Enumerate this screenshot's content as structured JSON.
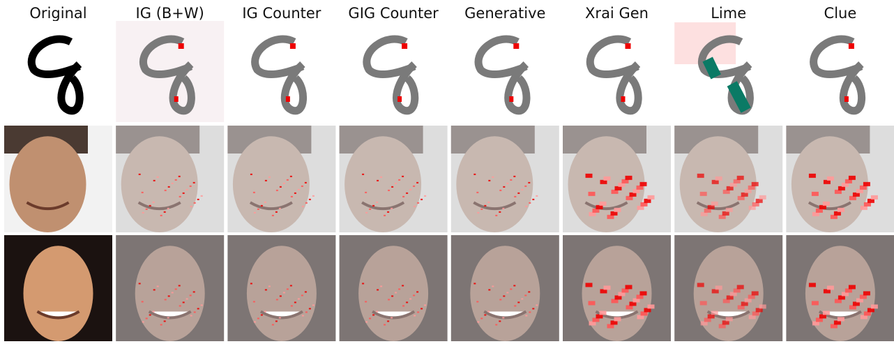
{
  "columns": [
    "Original",
    "IG (B+W)",
    "IG Counter",
    "GIG Counter",
    "Generative",
    "Xrai Gen",
    "Lime",
    "Clue"
  ]
}
